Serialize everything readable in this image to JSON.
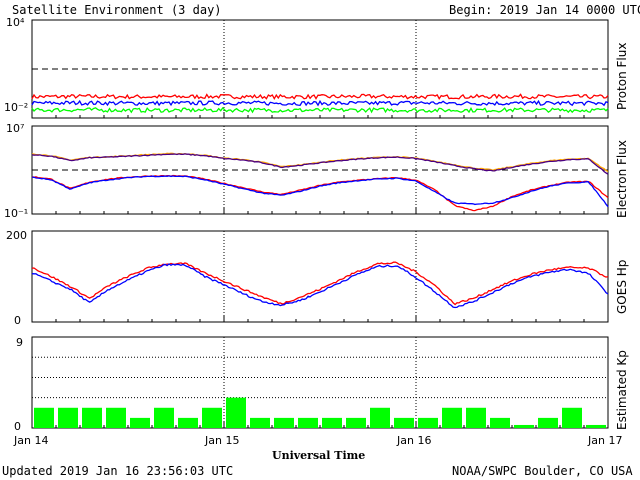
{
  "header": {
    "title": "Satellite Environment (3 day)",
    "begin": "Begin:  2019 Jan 14 0000 UTC"
  },
  "footer": {
    "updated": "Updated 2019 Jan 16 23:56:03 UTC",
    "credit": "NOAA/SWPC Boulder, CO USA"
  },
  "colors": {
    "red": "#ff0000",
    "blue": "#0000ff",
    "green": "#00ff00",
    "orange": "#ffa500",
    "purple": "#4b0082"
  },
  "chart_data": [
    {
      "type": "line",
      "ylabel": "Proton Flux",
      "yscale": "log",
      "ylim": [
        0.01,
        10000
      ],
      "ticks": [
        "10⁴",
        "10⁻²"
      ],
      "threshold": 10,
      "x_days": [
        0,
        0.25,
        0.5,
        0.75,
        1,
        1.25,
        1.5,
        1.75,
        2,
        2.25,
        2.5,
        2.75,
        3
      ],
      "series": [
        {
          "color": "red",
          "values": [
            0.2,
            0.21,
            0.2,
            0.2,
            0.21,
            0.2,
            0.2,
            0.21,
            0.2,
            0.2,
            0.21,
            0.2,
            0.2
          ]
        },
        {
          "color": "blue",
          "values": [
            0.08,
            0.085,
            0.08,
            0.08,
            0.085,
            0.08,
            0.08,
            0.08,
            0.085,
            0.08,
            0.08,
            0.08,
            0.08
          ]
        },
        {
          "color": "green",
          "values": [
            0.03,
            0.032,
            0.03,
            0.03,
            0.031,
            0.03,
            0.03,
            0.031,
            0.03,
            0.03,
            0.031,
            0.03,
            0.03
          ]
        }
      ]
    },
    {
      "type": "line",
      "ylabel": "Electron Flux",
      "yscale": "log",
      "ylim": [
        0.1,
        10000000
      ],
      "ticks": [
        "10⁷",
        "10⁻¹"
      ],
      "threshold": 1000,
      "x_days": [
        0,
        0.1,
        0.2,
        0.3,
        0.4,
        0.5,
        0.6,
        0.7,
        0.8,
        0.9,
        1,
        1.1,
        1.2,
        1.3,
        1.4,
        1.5,
        1.6,
        1.7,
        1.8,
        1.9,
        2,
        2.1,
        2.2,
        2.3,
        2.4,
        2.5,
        2.6,
        2.7,
        2.8,
        2.9,
        3
      ],
      "series": [
        {
          "color": "orange",
          "values": [
            30000,
            20000,
            8000,
            14000,
            16000,
            20000,
            25000,
            30000,
            30000,
            22000,
            12000,
            9000,
            5000,
            2000,
            3000,
            5000,
            8000,
            11000,
            14000,
            16000,
            12000,
            6000,
            3000,
            1500,
            1000,
            2000,
            4000,
            7000,
            10000,
            11000,
            700
          ]
        },
        {
          "color": "purple",
          "values": [
            25000,
            18000,
            7000,
            13000,
            15000,
            18000,
            22000,
            27000,
            27000,
            20000,
            11000,
            8000,
            4500,
            1800,
            2700,
            4500,
            7000,
            10000,
            13000,
            15000,
            11000,
            5500,
            2500,
            1300,
            800,
            1800,
            3500,
            6000,
            9000,
            10000,
            400
          ]
        },
        {
          "color": "red",
          "values": [
            250,
            150,
            20,
            80,
            150,
            220,
            280,
            300,
            280,
            150,
            60,
            25,
            10,
            6,
            15,
            40,
            80,
            120,
            160,
            200,
            120,
            15,
            0.6,
            0.2,
            0.5,
            4,
            15,
            40,
            80,
            90,
            3
          ]
        },
        {
          "color": "blue",
          "values": [
            220,
            130,
            18,
            70,
            130,
            200,
            260,
            280,
            260,
            130,
            50,
            20,
            8,
            5,
            12,
            35,
            70,
            110,
            150,
            180,
            100,
            10,
            1,
            0.8,
            1,
            3,
            12,
            35,
            70,
            80,
            0.5
          ]
        }
      ]
    },
    {
      "type": "line",
      "ylabel": "GOES Hp",
      "ylim": [
        0,
        200
      ],
      "ticks": [
        "200",
        "0"
      ],
      "x_days": [
        0,
        0.1,
        0.2,
        0.3,
        0.4,
        0.5,
        0.6,
        0.7,
        0.8,
        0.9,
        1,
        1.1,
        1.2,
        1.3,
        1.4,
        1.5,
        1.6,
        1.7,
        1.8,
        1.9,
        2,
        2.1,
        2.2,
        2.3,
        2.4,
        2.5,
        2.6,
        2.7,
        2.8,
        2.9,
        3
      ],
      "series": [
        {
          "color": "red",
          "values": [
            120,
            100,
            78,
            52,
            80,
            100,
            118,
            128,
            128,
            108,
            90,
            72,
            55,
            40,
            55,
            72,
            92,
            112,
            128,
            130,
            110,
            80,
            40,
            52,
            72,
            90,
            105,
            115,
            120,
            118,
            98
          ]
        },
        {
          "color": "blue",
          "values": [
            108,
            90,
            72,
            42,
            72,
            92,
            112,
            126,
            125,
            100,
            82,
            62,
            45,
            37,
            48,
            66,
            86,
            106,
            122,
            124,
            98,
            66,
            32,
            45,
            65,
            85,
            100,
            110,
            116,
            106,
            62
          ]
        }
      ]
    },
    {
      "type": "bar",
      "ylabel": "Estimated Kp",
      "ylim": [
        0,
        9
      ],
      "ticks": [
        "9",
        "0"
      ],
      "color": "green",
      "values": [
        2,
        2,
        2,
        2,
        1,
        2,
        1,
        2,
        3,
        1,
        1,
        1,
        1,
        1,
        2,
        1,
        1,
        2,
        2,
        1,
        0.3,
        1,
        2,
        0.3
      ]
    }
  ],
  "xaxis": {
    "label": "Universal Time",
    "ticks": [
      "Jan 14",
      "Jan 15",
      "Jan 16",
      "Jan 17"
    ]
  }
}
